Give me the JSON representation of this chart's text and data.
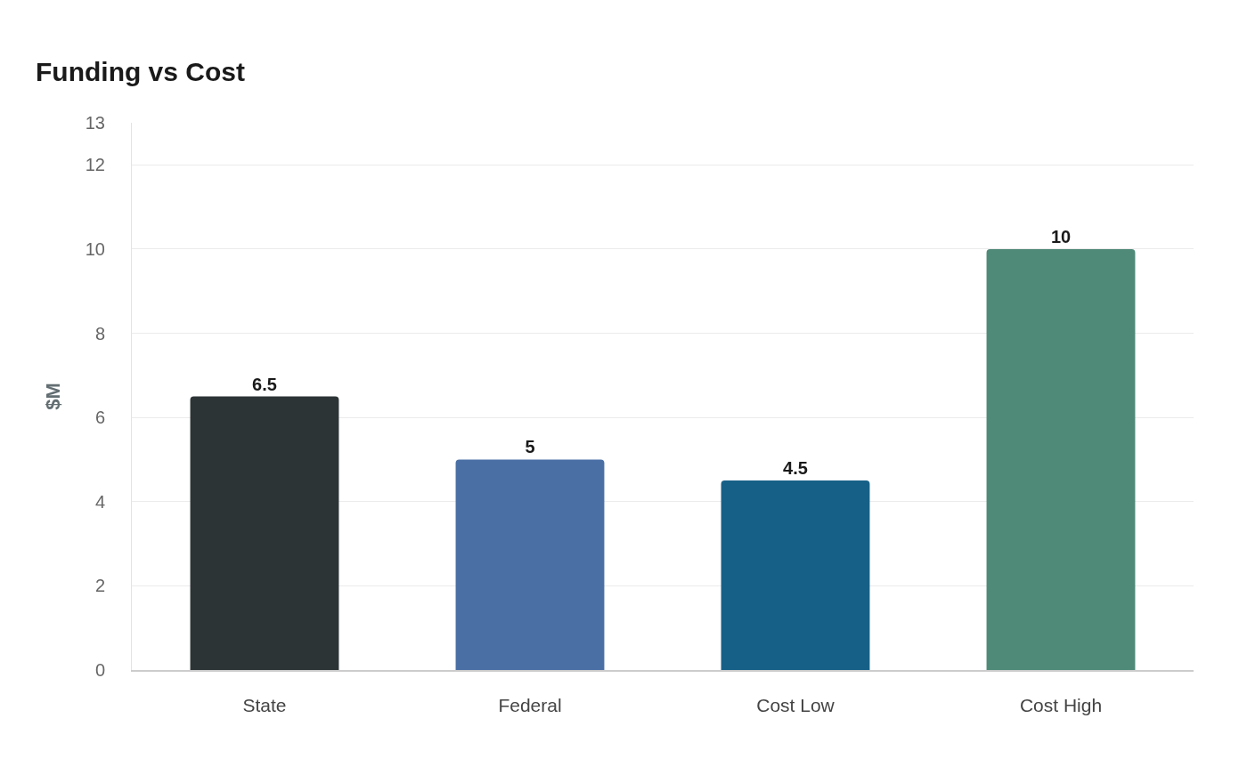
{
  "chart_data": {
    "type": "bar",
    "title": "Funding vs Cost",
    "ylabel": "$M",
    "categories": [
      "State",
      "Federal",
      "Cost Low",
      "Cost High"
    ],
    "values": [
      6.5,
      5,
      4.5,
      10
    ],
    "colors": [
      "#2d3436",
      "#4a6fa5",
      "#166088",
      "#4f8a78"
    ],
    "ylim": [
      0,
      13
    ],
    "yticks": [
      0,
      2,
      4,
      6,
      8,
      10,
      12,
      13
    ],
    "grid": "y",
    "data_labels": true
  }
}
